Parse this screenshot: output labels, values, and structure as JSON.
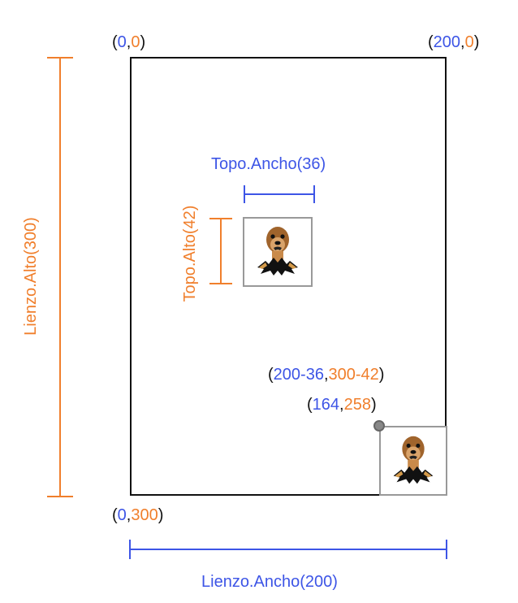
{
  "colors": {
    "blue": "#3d55e6",
    "orange": "#f07f2c",
    "black": "#111111"
  },
  "corners": {
    "top_left": {
      "open": "(",
      "x": "0",
      "sep": ",",
      "y": "0",
      "close": ")"
    },
    "top_right": {
      "open": "(",
      "x": "200",
      "sep": ",",
      "y": "0",
      "close": ")"
    },
    "bottom_left": {
      "open": "(",
      "x": "0",
      "sep": ",",
      "y": "300",
      "close": ")"
    }
  },
  "mole_position": {
    "formula": {
      "open": "(",
      "x": "200-36",
      "sep": ",",
      "y": "300-42",
      "close": ")"
    },
    "result": {
      "open": "(",
      "x": "164",
      "sep": ",",
      "y": "258",
      "close": ")"
    }
  },
  "dimensions": {
    "topo_ancho": "Topo.Ancho(36)",
    "topo_alto": "Topo.Alto(42)",
    "lienzo_alto": "Lienzo.Alto(300)",
    "lienzo_ancho": "Lienzo.Ancho(200)"
  },
  "icons": {
    "mole": "mole-icon",
    "anchor": "anchor-dot"
  }
}
